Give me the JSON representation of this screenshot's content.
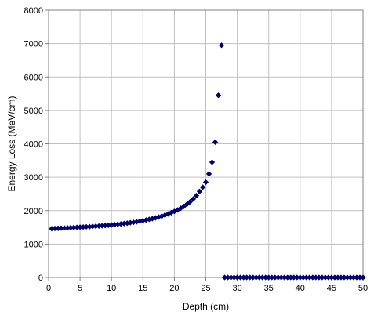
{
  "chart_data": {
    "type": "scatter",
    "title": "",
    "xlabel": "Depth (cm)",
    "ylabel": "Energy Loss (MeV/cm)",
    "xlim": [
      0,
      50
    ],
    "ylim": [
      0,
      8000
    ],
    "x_ticks": [
      0,
      5,
      10,
      15,
      20,
      25,
      30,
      35,
      40,
      45,
      50
    ],
    "y_ticks": [
      0,
      1000,
      2000,
      3000,
      4000,
      5000,
      6000,
      7000,
      8000
    ],
    "grid": true,
    "legend": "none",
    "marker": "diamond",
    "marker_color": "#000066",
    "series": [
      {
        "points": [
          [
            0.5,
            1460
          ],
          [
            1.0,
            1465
          ],
          [
            1.5,
            1470
          ],
          [
            2.0,
            1475
          ],
          [
            2.5,
            1480
          ],
          [
            3.0,
            1485
          ],
          [
            3.5,
            1490
          ],
          [
            4.0,
            1495
          ],
          [
            4.5,
            1500
          ],
          [
            5.0,
            1505
          ],
          [
            5.5,
            1510
          ],
          [
            6.0,
            1515
          ],
          [
            6.5,
            1520
          ],
          [
            7.0,
            1527
          ],
          [
            7.5,
            1533
          ],
          [
            8.0,
            1540
          ],
          [
            8.5,
            1547
          ],
          [
            9.0,
            1555
          ],
          [
            9.5,
            1563
          ],
          [
            10.0,
            1572
          ],
          [
            10.5,
            1581
          ],
          [
            11.0,
            1591
          ],
          [
            11.5,
            1602
          ],
          [
            12.0,
            1613
          ],
          [
            12.5,
            1625
          ],
          [
            13.0,
            1638
          ],
          [
            13.5,
            1652
          ],
          [
            14.0,
            1667
          ],
          [
            14.5,
            1683
          ],
          [
            15.0,
            1700
          ],
          [
            15.5,
            1718
          ],
          [
            16.0,
            1738
          ],
          [
            16.5,
            1760
          ],
          [
            17.0,
            1783
          ],
          [
            17.5,
            1808
          ],
          [
            18.0,
            1836
          ],
          [
            18.5,
            1866
          ],
          [
            19.0,
            1900
          ],
          [
            19.5,
            1937
          ],
          [
            20.0,
            1977
          ],
          [
            20.5,
            2020
          ],
          [
            21.0,
            2070
          ],
          [
            21.5,
            2125
          ],
          [
            22.0,
            2190
          ],
          [
            22.5,
            2265
          ],
          [
            23.0,
            2350
          ],
          [
            23.5,
            2450
          ],
          [
            24.0,
            2575
          ],
          [
            24.5,
            2700
          ],
          [
            25.0,
            2850
          ],
          [
            25.5,
            3100
          ],
          [
            26.0,
            3450
          ],
          [
            26.5,
            4050
          ],
          [
            27.0,
            5450
          ],
          [
            27.5,
            6950
          ],
          [
            28.0,
            0
          ],
          [
            28.5,
            0
          ],
          [
            29.0,
            0
          ],
          [
            29.5,
            0
          ],
          [
            30.0,
            0
          ],
          [
            30.5,
            0
          ],
          [
            31.0,
            0
          ],
          [
            31.5,
            0
          ],
          [
            32.0,
            0
          ],
          [
            32.5,
            0
          ],
          [
            33.0,
            0
          ],
          [
            33.5,
            0
          ],
          [
            34.0,
            0
          ],
          [
            34.5,
            0
          ],
          [
            35.0,
            0
          ],
          [
            35.5,
            0
          ],
          [
            36.0,
            0
          ],
          [
            36.5,
            0
          ],
          [
            37.0,
            0
          ],
          [
            37.5,
            0
          ],
          [
            38.0,
            0
          ],
          [
            38.5,
            0
          ],
          [
            39.0,
            0
          ],
          [
            39.5,
            0
          ],
          [
            40.0,
            0
          ],
          [
            40.5,
            0
          ],
          [
            41.0,
            0
          ],
          [
            41.5,
            0
          ],
          [
            42.0,
            0
          ],
          [
            42.5,
            0
          ],
          [
            43.0,
            0
          ],
          [
            43.5,
            0
          ],
          [
            44.0,
            0
          ],
          [
            44.5,
            0
          ],
          [
            45.0,
            0
          ],
          [
            45.5,
            0
          ],
          [
            46.0,
            0
          ],
          [
            46.5,
            0
          ],
          [
            47.0,
            0
          ],
          [
            47.5,
            0
          ],
          [
            48.0,
            0
          ],
          [
            48.5,
            0
          ],
          [
            49.0,
            0
          ],
          [
            49.5,
            0
          ],
          [
            50.0,
            0
          ]
        ]
      }
    ]
  }
}
